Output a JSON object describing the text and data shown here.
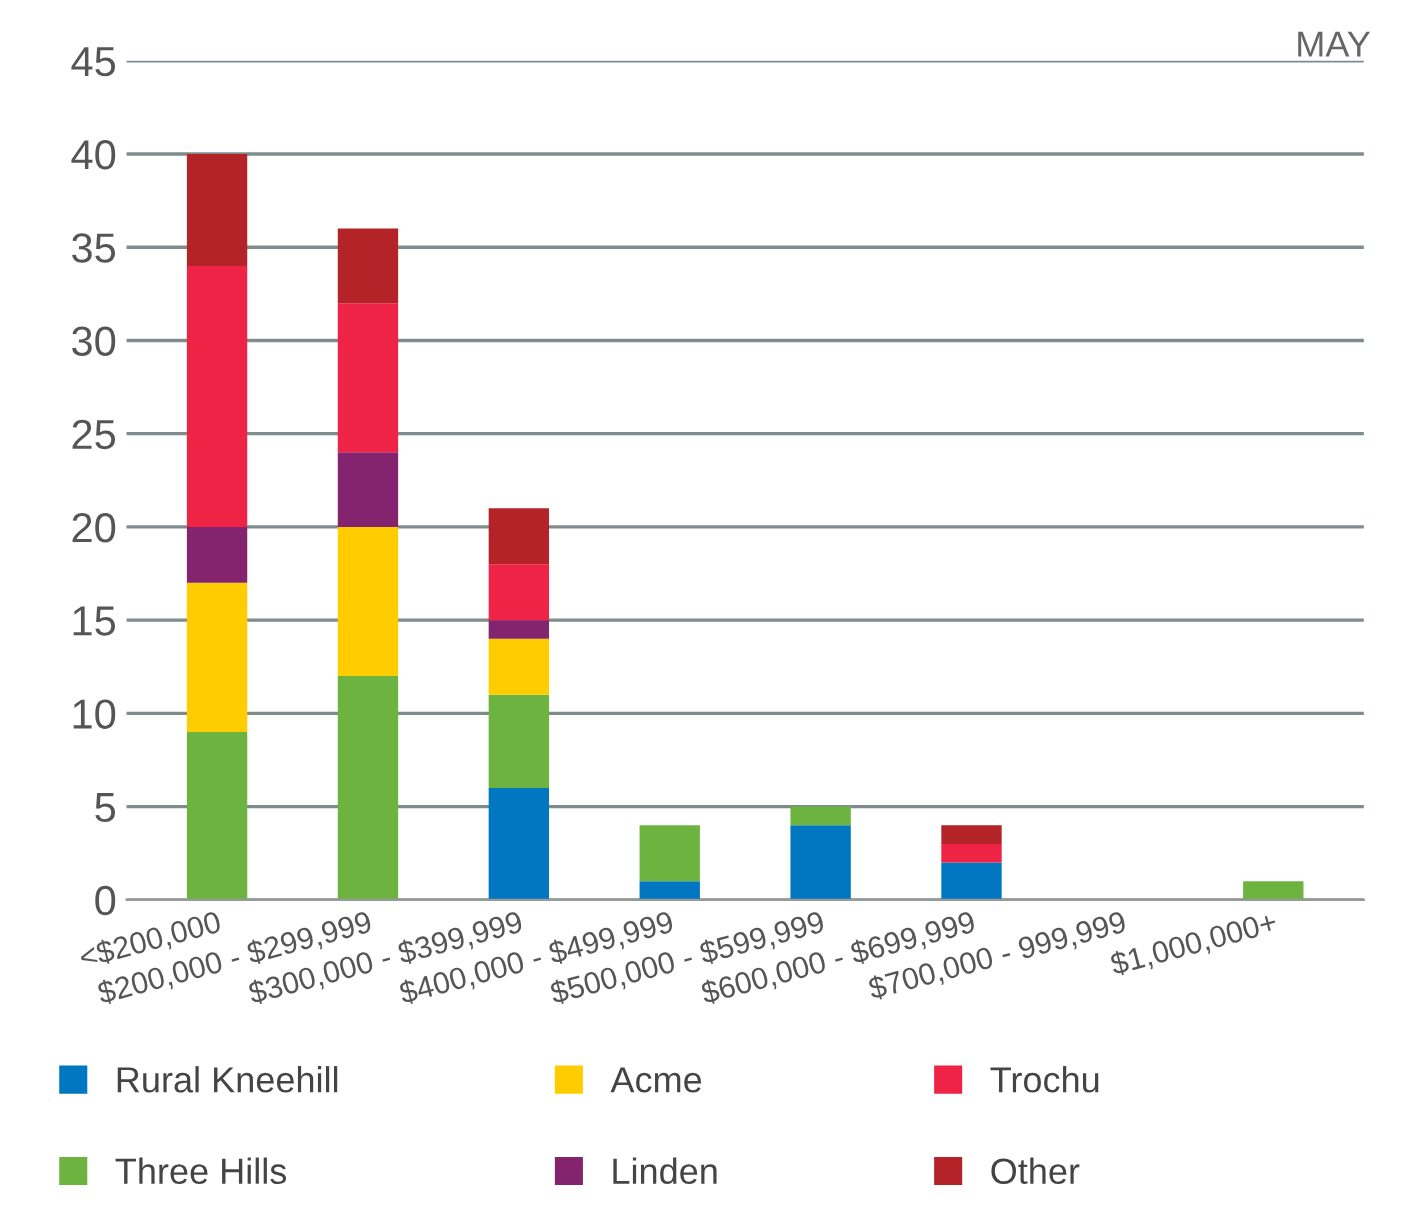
{
  "chart_data": {
    "type": "bar",
    "stacked": true,
    "subtitle": "MAY",
    "categories": [
      "<$200,000",
      "$200,000 - $299,999",
      "$300,000 - $399,999",
      "$400,000 - $499,999",
      "$500,000 - $599,999",
      "$600,000 - $699,999",
      "$700,000 - 999,999",
      "$1,000,000+"
    ],
    "series": [
      {
        "name": "Rural Kneehill",
        "color": "#0077c0",
        "values": [
          0,
          0,
          6,
          1,
          4,
          2,
          0,
          0
        ]
      },
      {
        "name": "Three Hills",
        "color": "#6db33f",
        "values": [
          9,
          12,
          5,
          3,
          1,
          0,
          0,
          1
        ]
      },
      {
        "name": "Acme",
        "color": "#ffcc00",
        "values": [
          8,
          8,
          3,
          0,
          0,
          0,
          0,
          0
        ]
      },
      {
        "name": "Linden",
        "color": "#84236e",
        "values": [
          3,
          4,
          1,
          0,
          0,
          0,
          0,
          0
        ]
      },
      {
        "name": "Trochu",
        "color": "#ee2346",
        "values": [
          14,
          8,
          3,
          0,
          0,
          1,
          0,
          0
        ]
      },
      {
        "name": "Other",
        "color": "#b42327",
        "values": [
          6,
          4,
          3,
          0,
          0,
          1,
          0,
          0
        ]
      }
    ],
    "ylim": [
      0,
      45
    ],
    "yticks": [
      0,
      5,
      10,
      15,
      20,
      25,
      30,
      35,
      40,
      45
    ],
    "grid": "y",
    "legend": "bottom"
  }
}
